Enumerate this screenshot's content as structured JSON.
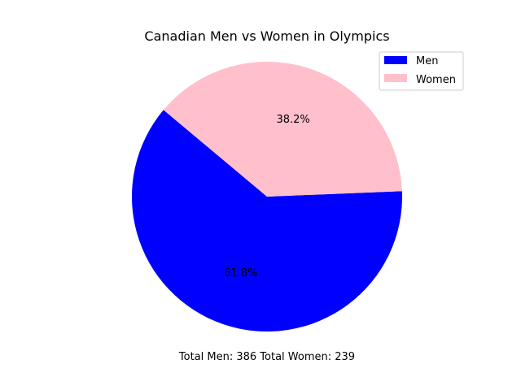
{
  "chart_data": {
    "type": "pie",
    "title": "Canadian Men vs Women in Olympics",
    "categories": [
      "Men",
      "Women"
    ],
    "values": [
      386,
      239
    ],
    "percent_labels": [
      "61.8%",
      "38.2%"
    ],
    "colors": [
      "#0000ff",
      "#ffc0cb"
    ],
    "legend": {
      "entries": [
        "Men",
        "Women"
      ],
      "placement": "top-right"
    },
    "caption": "Total Men: 386 Total Women: 239"
  }
}
